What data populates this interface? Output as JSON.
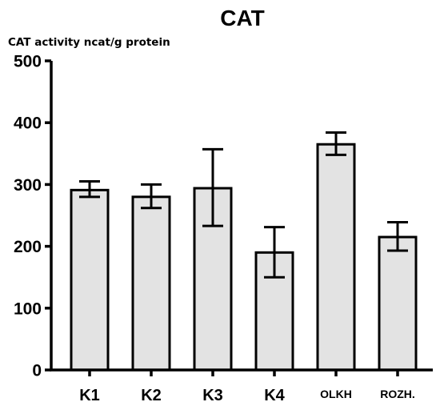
{
  "chart_data": {
    "type": "bar",
    "title": "CAT",
    "ylabel": "CAT activity ncat/g protein",
    "xlabel": "",
    "ylim": [
      0,
      500
    ],
    "yticks": [
      0,
      100,
      200,
      300,
      400,
      500
    ],
    "categories": [
      "K1",
      "K2",
      "K3",
      "K4",
      "OLKH",
      "ROZH."
    ],
    "values": [
      291,
      280,
      294,
      190,
      365,
      215
    ],
    "errors": [
      {
        "low": 280,
        "high": 305
      },
      {
        "low": 262,
        "high": 300
      },
      {
        "low": 233,
        "high": 357
      },
      {
        "low": 150,
        "high": 231
      },
      {
        "low": 348,
        "high": 384
      },
      {
        "low": 193,
        "high": 239
      }
    ],
    "bar_color": "#e3e3e3",
    "grid": false,
    "legend": "none"
  }
}
